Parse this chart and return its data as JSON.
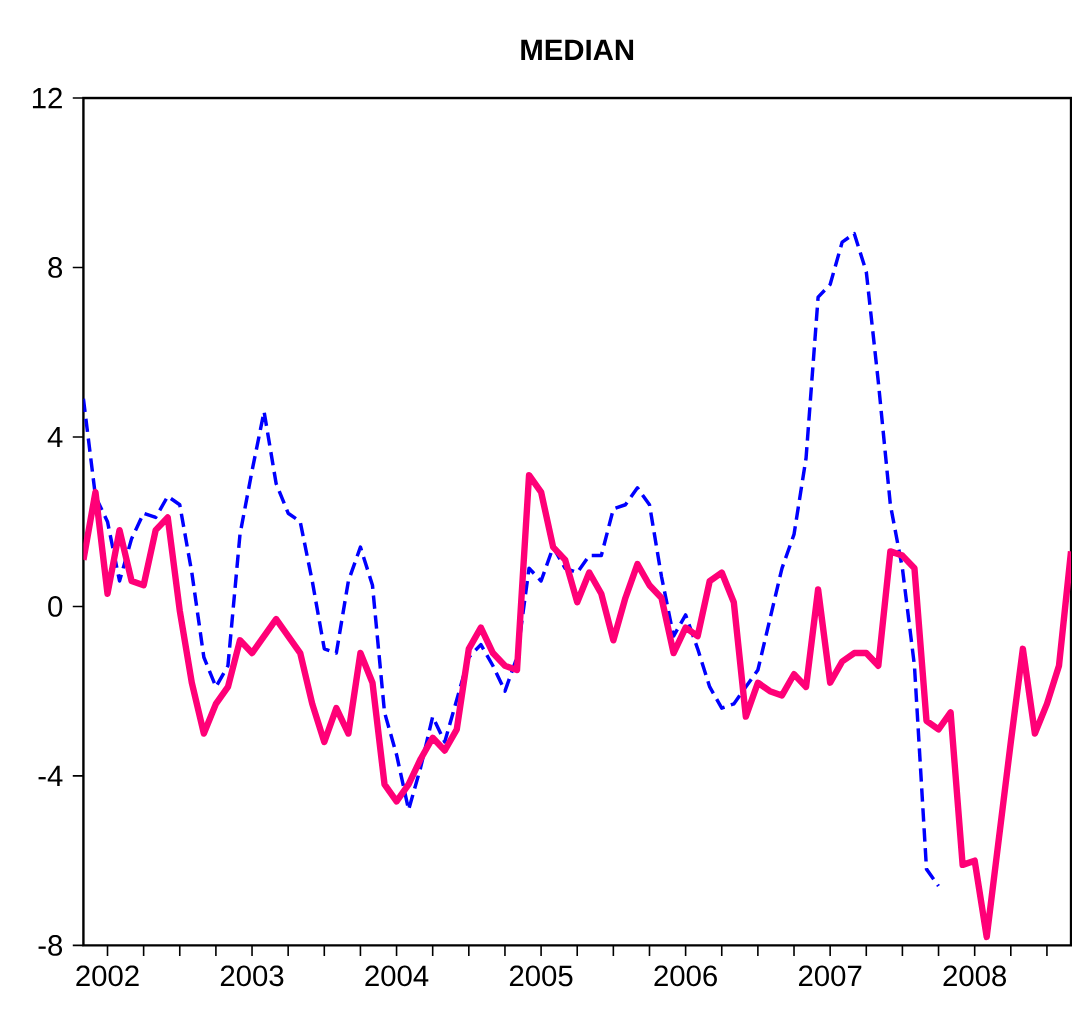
{
  "chart_data": {
    "type": "line",
    "title": "MEDIAN",
    "x": [
      "2002-05",
      "2002-06",
      "2002-07",
      "2002-08",
      "2002-09",
      "2002-10",
      "2002-11",
      "2002-12",
      "2003-01",
      "2003-02",
      "2003-03",
      "2003-04",
      "2003-05",
      "2003-06",
      "2003-07",
      "2003-08",
      "2003-09",
      "2003-10",
      "2003-11",
      "2003-12",
      "2004-01",
      "2004-02",
      "2004-03",
      "2004-04",
      "2004-05",
      "2004-06",
      "2004-07",
      "2004-08",
      "2004-09",
      "2004-10",
      "2004-11",
      "2004-12",
      "2005-01",
      "2005-02",
      "2005-03",
      "2005-04",
      "2005-05",
      "2005-06",
      "2005-07",
      "2005-08",
      "2005-09",
      "2005-10",
      "2005-11",
      "2005-12",
      "2006-01",
      "2006-02",
      "2006-03",
      "2006-04",
      "2006-05",
      "2006-06",
      "2006-07",
      "2006-08",
      "2006-09",
      "2006-10",
      "2006-11",
      "2006-12",
      "2007-01",
      "2007-02",
      "2007-03",
      "2007-04",
      "2007-05",
      "2007-06",
      "2007-07",
      "2007-08",
      "2007-09",
      "2007-10",
      "2007-11",
      "2007-12",
      "2008-01",
      "2008-02",
      "2008-03",
      "2008-04",
      "2008-05",
      "2008-06",
      "2008-07",
      "2008-08",
      "2008-09",
      "2008-10",
      "2008-11",
      "2008-12",
      "2009-01",
      "2009-02",
      "2009-03"
    ],
    "series": [
      {
        "color": "#0000ff",
        "line_style": "dashed",
        "values": [
          4.9,
          2.6,
          2.0,
          0.6,
          1.6,
          2.2,
          2.1,
          2.6,
          2.4,
          0.8,
          -1.2,
          -1.9,
          -1.4,
          1.7,
          3.2,
          4.6,
          2.9,
          2.2,
          2.0,
          0.6,
          -1.0,
          -1.1,
          0.6,
          1.4,
          0.5,
          -2.5,
          -3.5,
          -4.8,
          -3.8,
          -2.6,
          -3.2,
          -2.2,
          -1.2,
          -0.9,
          -1.4,
          -2.0,
          -1.2,
          0.9,
          0.6,
          1.4,
          0.9,
          0.8,
          1.2,
          1.2,
          2.3,
          2.4,
          2.8,
          2.4,
          0.7,
          -0.7,
          -0.2,
          -1.0,
          -1.9,
          -2.4,
          -2.3,
          -1.9,
          -1.5,
          -0.3,
          0.9,
          1.7,
          3.5,
          7.3,
          7.6,
          8.6,
          8.8,
          7.9,
          5.3,
          2.4,
          0.9,
          -1.4,
          -6.2,
          -6.6,
          null,
          null,
          null,
          null,
          null,
          null,
          null,
          null,
          null,
          null,
          null
        ]
      },
      {
        "color": "#ff0077",
        "line_style": "solid",
        "values": [
          1.1,
          2.7,
          0.3,
          1.8,
          0.6,
          0.5,
          1.8,
          2.1,
          -0.1,
          -1.8,
          -3.0,
          -2.3,
          -1.9,
          -0.8,
          -1.1,
          -0.7,
          -0.3,
          -0.7,
          -1.1,
          -2.3,
          -3.2,
          -2.4,
          -3.0,
          -1.1,
          -1.8,
          -4.2,
          -4.6,
          -4.2,
          -3.6,
          -3.1,
          -3.4,
          -2.9,
          -1.0,
          -0.5,
          -1.1,
          -1.4,
          -1.5,
          3.1,
          2.7,
          1.4,
          1.1,
          0.1,
          0.8,
          0.3,
          -0.8,
          0.2,
          1.0,
          0.5,
          0.2,
          -1.1,
          -0.5,
          -0.7,
          0.6,
          0.8,
          0.1,
          -2.6,
          -1.8,
          -2.0,
          -2.1,
          -1.6,
          -1.9,
          0.4,
          -1.8,
          -1.3,
          -1.1,
          -1.1,
          -1.4,
          1.3,
          1.2,
          0.9,
          -2.7,
          -2.9,
          -2.5,
          -6.1,
          -6.0,
          -7.8,
          -5.5,
          -3.2,
          -1.0,
          -3.0,
          -2.3,
          -1.4,
          1.3
        ]
      }
    ],
    "xlim": [
      "2002-05",
      "2009-03"
    ],
    "xticks": [
      {
        "value": "2002-07",
        "label": "2002"
      },
      {
        "value": "2002-10",
        "label": null
      },
      {
        "value": "2003-01",
        "label": null
      },
      {
        "value": "2003-04",
        "label": null
      },
      {
        "value": "2003-07",
        "label": "2003"
      },
      {
        "value": "2003-10",
        "label": null
      },
      {
        "value": "2004-01",
        "label": null
      },
      {
        "value": "2004-04",
        "label": null
      },
      {
        "value": "2004-07",
        "label": "2004"
      },
      {
        "value": "2004-10",
        "label": null
      },
      {
        "value": "2005-01",
        "label": null
      },
      {
        "value": "2005-04",
        "label": null
      },
      {
        "value": "2005-07",
        "label": "2005"
      },
      {
        "value": "2005-10",
        "label": null
      },
      {
        "value": "2006-01",
        "label": null
      },
      {
        "value": "2006-04",
        "label": null
      },
      {
        "value": "2006-07",
        "label": "2006"
      },
      {
        "value": "2006-10",
        "label": null
      },
      {
        "value": "2007-01",
        "label": null
      },
      {
        "value": "2007-04",
        "label": null
      },
      {
        "value": "2007-07",
        "label": "2007"
      },
      {
        "value": "2007-10",
        "label": null
      },
      {
        "value": "2008-01",
        "label": null
      },
      {
        "value": "2008-04",
        "label": null
      },
      {
        "value": "2008-07",
        "label": "2008"
      },
      {
        "value": "2008-10",
        "label": null
      },
      {
        "value": "2009-01",
        "label": null
      }
    ],
    "ylim": [
      -8,
      12
    ],
    "yticks": [
      -8,
      -4,
      0,
      4,
      8,
      12
    ],
    "grid": false,
    "legend": false,
    "marker": "none"
  }
}
